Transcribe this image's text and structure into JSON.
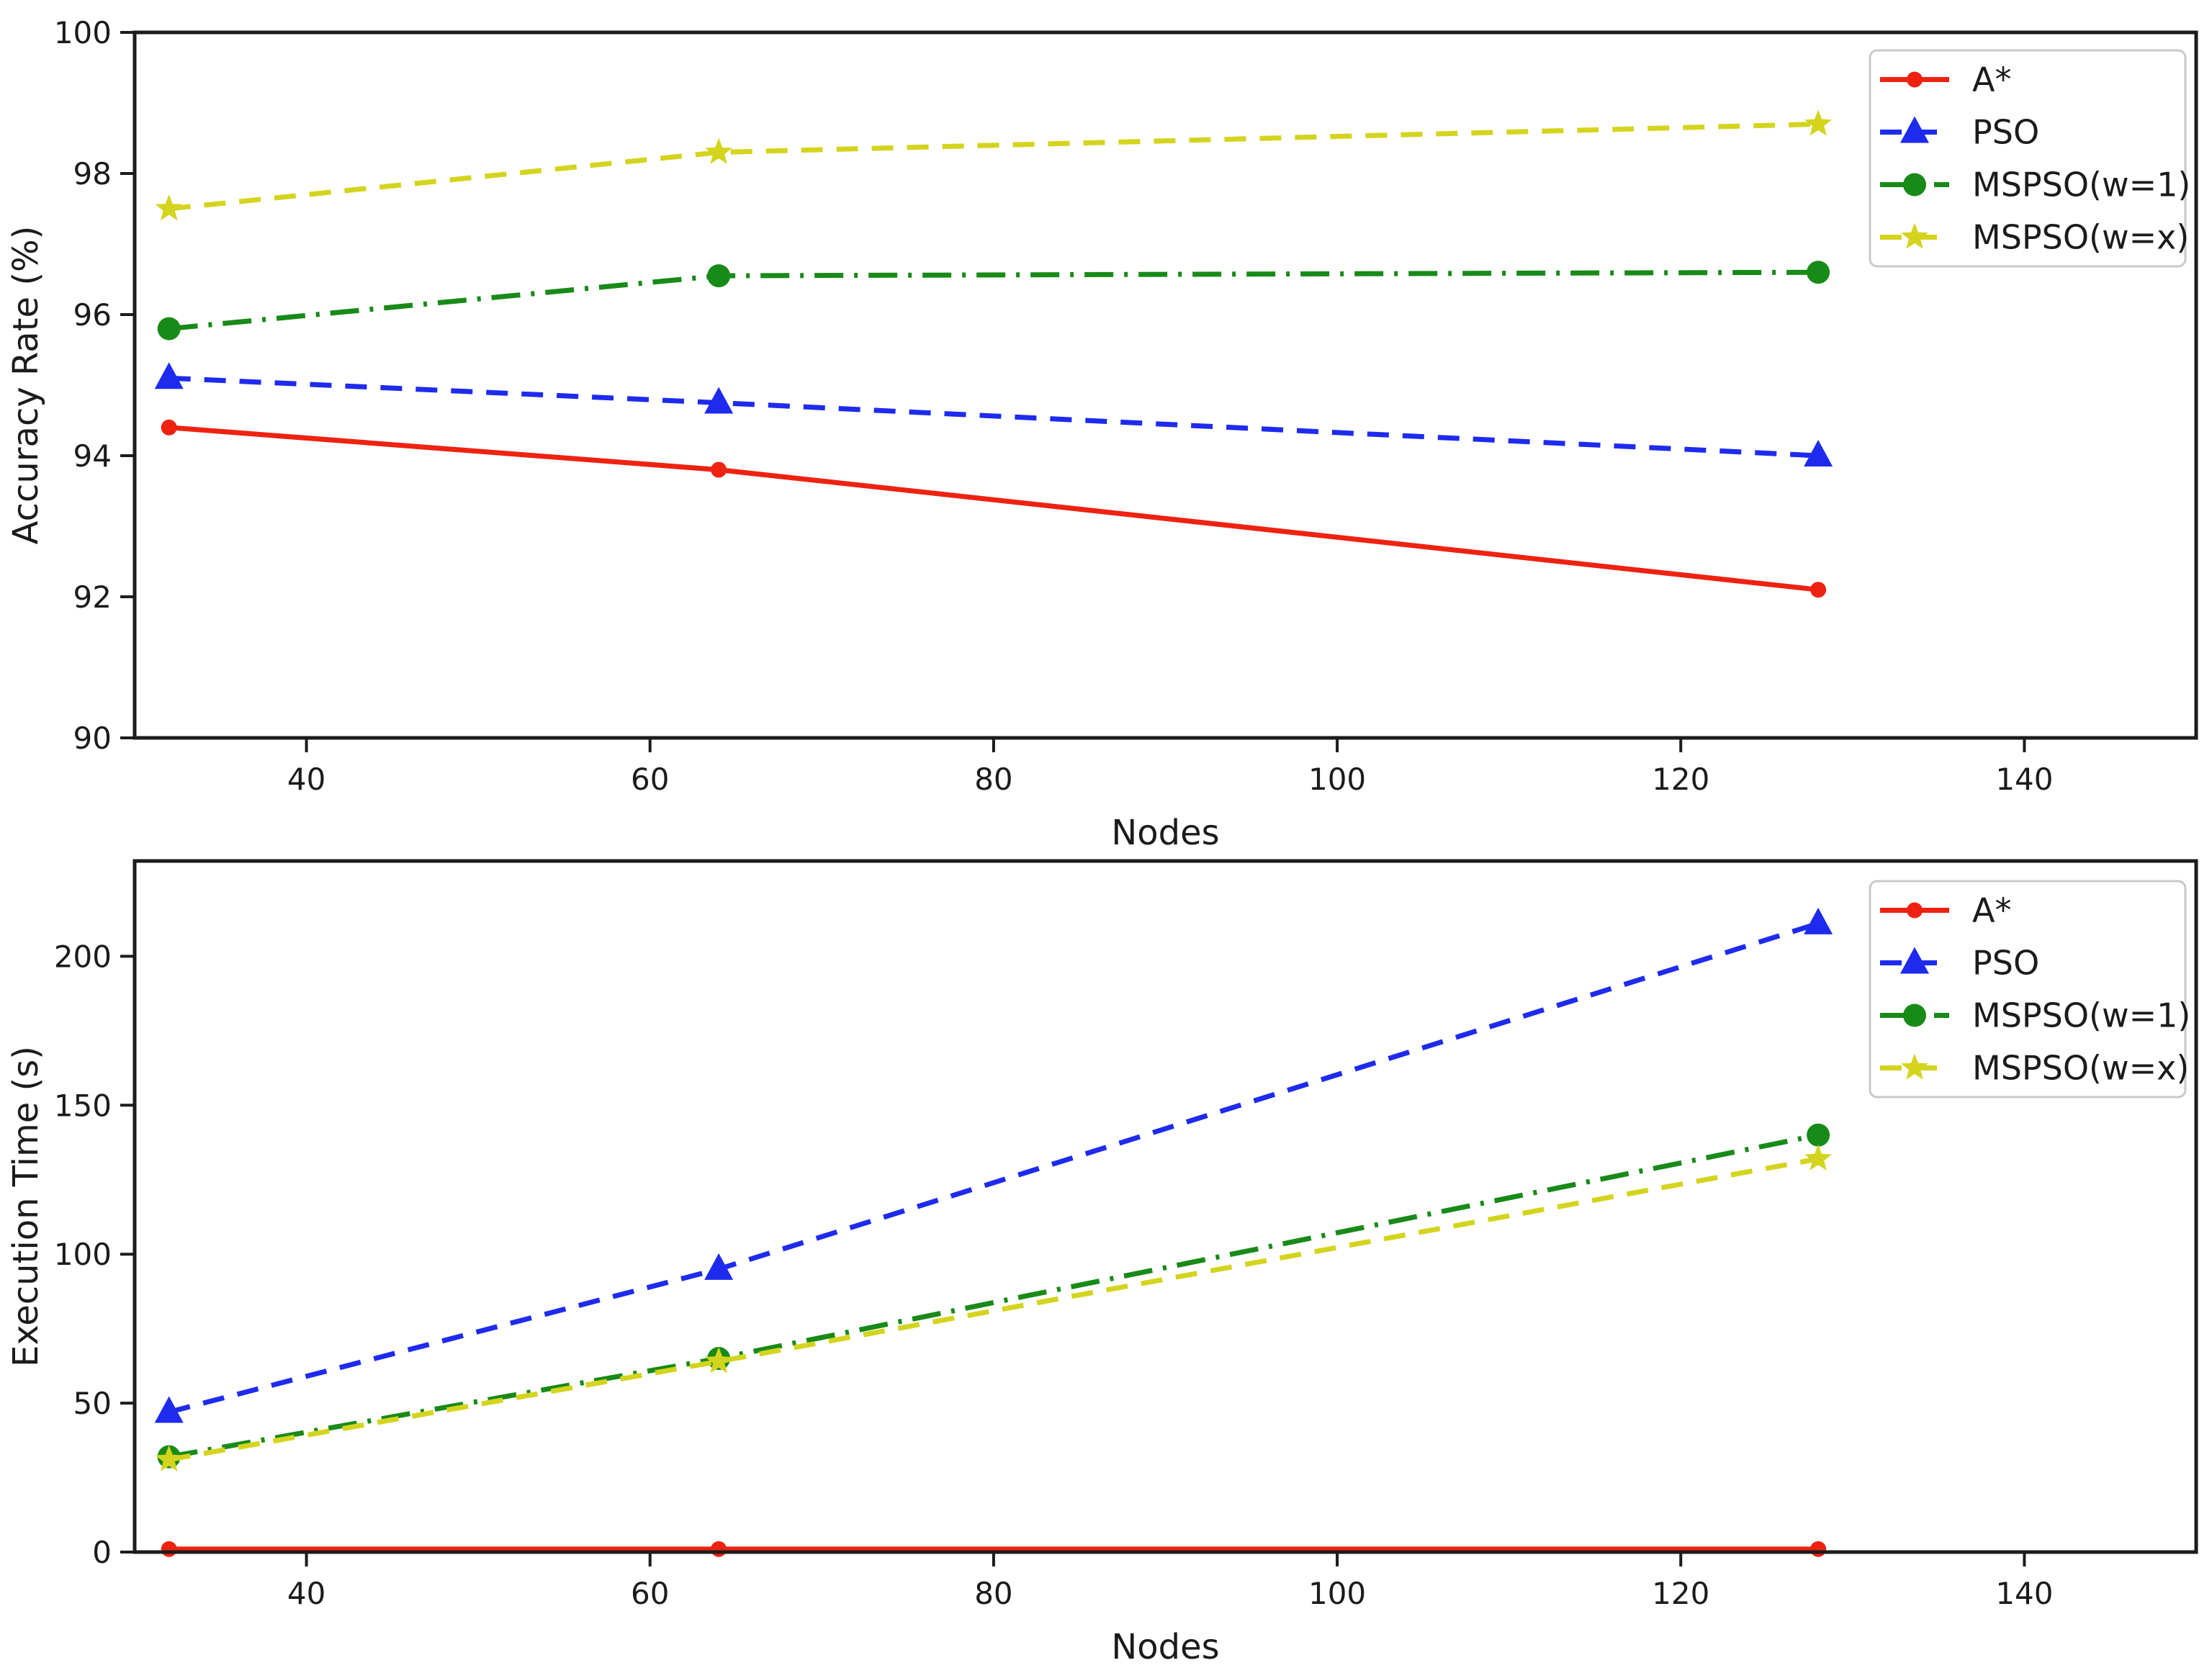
{
  "figure": {
    "background": "#ffffff",
    "axis_color": "#1c1c1c",
    "legend_border_color": "#c9c9c9",
    "legend_background": "#ffffff"
  },
  "chart_data": [
    {
      "type": "line",
      "title": "",
      "xlabel": "Nodes",
      "ylabel": "Accuracy Rate (%)",
      "x": [
        32,
        64,
        128
      ],
      "xlim": [
        30,
        150
      ],
      "ylim": [
        90,
        100
      ],
      "xticks": [
        40,
        60,
        80,
        100,
        120,
        140
      ],
      "yticks": [
        90,
        92,
        94,
        96,
        98,
        100
      ],
      "grid": false,
      "legend_position": "upper right",
      "series": [
        {
          "name": "A*",
          "values": [
            94.4,
            93.8,
            92.1
          ],
          "color": "#ee2211",
          "linestyle": "solid",
          "marker": "circle-small"
        },
        {
          "name": "PSO",
          "values": [
            95.1,
            94.75,
            94.0
          ],
          "color": "#1e2bee",
          "linestyle": "dashed",
          "marker": "triangle-up"
        },
        {
          "name": "MSPSO(w=1)",
          "values": [
            95.8,
            96.55,
            96.6
          ],
          "color": "#188a18",
          "linestyle": "dashdot",
          "marker": "circle"
        },
        {
          "name": "MSPSO(w=x)",
          "values": [
            97.5,
            98.3,
            98.7
          ],
          "color": "#d4d41e",
          "linestyle": "dashed",
          "marker": "star"
        }
      ]
    },
    {
      "type": "line",
      "title": "",
      "xlabel": "Nodes",
      "ylabel": "Execution Time (s)",
      "x": [
        32,
        64,
        128
      ],
      "xlim": [
        30,
        150
      ],
      "ylim": [
        0,
        232
      ],
      "xticks": [
        40,
        60,
        80,
        100,
        120,
        140
      ],
      "yticks": [
        0,
        50,
        100,
        150,
        200
      ],
      "grid": false,
      "legend_position": "upper right",
      "series": [
        {
          "name": "A*",
          "values": [
            1,
            1,
            1
          ],
          "color": "#ee2211",
          "linestyle": "solid",
          "marker": "circle-small"
        },
        {
          "name": "PSO",
          "values": [
            47,
            95,
            211
          ],
          "color": "#1e2bee",
          "linestyle": "dashed",
          "marker": "triangle-up"
        },
        {
          "name": "MSPSO(w=1)",
          "values": [
            32,
            65,
            140
          ],
          "color": "#188a18",
          "linestyle": "dashdot",
          "marker": "circle"
        },
        {
          "name": "MSPSO(w=x)",
          "values": [
            31,
            64,
            132
          ],
          "color": "#d4d41e",
          "linestyle": "dashed",
          "marker": "star"
        }
      ]
    }
  ]
}
